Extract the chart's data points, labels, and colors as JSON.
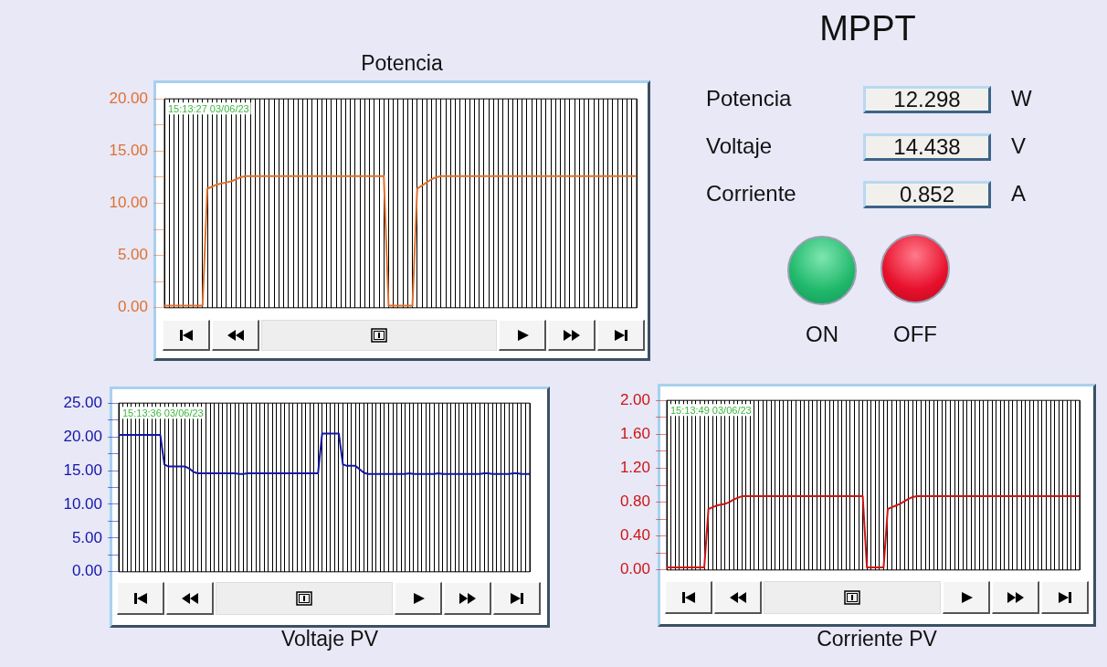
{
  "chart_data": [
    {
      "type": "line",
      "title": "Potencia",
      "annotations": [
        "15:13:27 03/06/23"
      ],
      "tick_labels": "y",
      "grid": "x",
      "ylim": [
        0,
        20
      ],
      "yticks": [
        {
          "value": 0,
          "label": "0.00"
        },
        {
          "value": 2.5,
          "label": null
        },
        {
          "value": 5,
          "label": "5.00"
        },
        {
          "value": 7.5,
          "label": null
        },
        {
          "value": 10,
          "label": "10.00"
        },
        {
          "value": 12.5,
          "label": null
        },
        {
          "value": 15,
          "label": "15.00"
        },
        {
          "value": 17.5,
          "label": null
        },
        {
          "value": 20,
          "label": "20.00"
        }
      ],
      "categories": [
        null,
        null,
        null,
        null,
        null,
        null,
        null,
        null,
        null,
        null,
        null,
        null,
        null,
        null,
        null,
        null,
        null,
        null,
        null,
        null,
        null,
        null,
        null,
        null,
        null,
        null,
        null,
        null,
        null,
        null,
        null,
        null,
        null,
        null,
        null,
        null,
        null,
        null,
        null,
        null,
        null,
        null,
        null,
        null,
        null,
        null,
        null,
        null,
        null,
        null,
        null,
        null,
        null,
        null,
        null,
        null,
        null,
        null,
        null,
        null,
        null,
        null,
        null,
        null,
        null,
        null,
        null,
        null,
        null,
        null,
        null,
        null,
        null,
        null,
        null,
        null,
        null,
        null,
        null,
        null,
        null,
        null,
        null,
        null,
        null,
        null,
        null,
        null,
        null,
        null,
        null,
        null,
        null,
        null,
        null,
        null,
        null,
        null,
        null,
        null
      ],
      "series": [
        {
          "color": "#e0702c",
          "values": [
            0.2,
            0.2,
            0.2,
            0.2,
            0.2,
            0.2,
            0.2,
            0.2,
            0.2,
            11.4,
            11.6,
            11.8,
            11.9,
            12.0,
            12.1,
            12.3,
            12.5,
            12.6,
            12.6,
            12.6,
            12.6,
            12.6,
            12.6,
            12.6,
            12.6,
            12.6,
            12.6,
            12.6,
            12.6,
            12.6,
            12.6,
            12.6,
            12.6,
            12.6,
            12.6,
            12.6,
            12.6,
            12.6,
            12.6,
            12.6,
            12.6,
            12.6,
            12.6,
            12.6,
            12.6,
            12.6,
            12.6,
            0.2,
            0.2,
            0.2,
            0.2,
            0.2,
            0.2,
            11.4,
            11.7,
            12.0,
            12.3,
            12.5,
            12.6,
            12.6,
            12.6,
            12.6,
            12.6,
            12.6,
            12.6,
            12.6,
            12.6,
            12.6,
            12.6,
            12.6,
            12.6,
            12.6,
            12.6,
            12.6,
            12.6,
            12.6,
            12.6,
            12.6,
            12.6,
            12.6,
            12.6,
            12.6,
            12.6,
            12.6,
            12.6,
            12.6,
            12.6,
            12.6,
            12.6,
            12.6,
            12.6,
            12.6,
            12.6,
            12.6,
            12.6,
            12.6,
            12.6,
            12.6,
            12.6,
            12.6
          ]
        }
      ]
    },
    {
      "type": "other",
      "title": "MPPT",
      "annotations": [
        "Potencia",
        "12.298",
        "W",
        "Voltaje",
        "14.438",
        "V",
        "Corriente",
        "0.852",
        "A",
        "ON",
        "OFF"
      ]
    },
    {
      "type": "line",
      "title": "Voltaje PV",
      "annotations": [
        "15:13:36 03/06/23"
      ],
      "tick_labels": "y",
      "grid": "x",
      "ylim": [
        0,
        25
      ],
      "yticks": [
        {
          "value": 0,
          "label": "0.00"
        },
        {
          "value": 2.5,
          "label": null
        },
        {
          "value": 5,
          "label": "5.00"
        },
        {
          "value": 7.5,
          "label": null
        },
        {
          "value": 10,
          "label": "10.00"
        },
        {
          "value": 12.5,
          "label": null
        },
        {
          "value": 15,
          "label": "15.00"
        },
        {
          "value": 17.5,
          "label": null
        },
        {
          "value": 20,
          "label": "20.00"
        },
        {
          "value": 22.5,
          "label": null
        },
        {
          "value": 25,
          "label": "25.00"
        }
      ],
      "categories": [
        null,
        null,
        null,
        null,
        null,
        null,
        null,
        null,
        null,
        null,
        null,
        null,
        null,
        null,
        null,
        null,
        null,
        null,
        null,
        null,
        null,
        null,
        null,
        null,
        null,
        null,
        null,
        null,
        null,
        null,
        null,
        null,
        null,
        null,
        null,
        null,
        null,
        null,
        null,
        null,
        null,
        null,
        null,
        null,
        null,
        null,
        null,
        null,
        null,
        null,
        null,
        null,
        null,
        null,
        null,
        null,
        null,
        null,
        null,
        null,
        null,
        null,
        null,
        null,
        null,
        null,
        null,
        null,
        null,
        null,
        null,
        null,
        null,
        null,
        null,
        null,
        null,
        null,
        null,
        null,
        null,
        null,
        null,
        null,
        null,
        null,
        null,
        null,
        null,
        null,
        null,
        null,
        null,
        null,
        null,
        null,
        null,
        null,
        null,
        null
      ],
      "series": [
        {
          "color": "#1414a8",
          "values": [
            20.3,
            20.3,
            20.3,
            20.3,
            20.3,
            20.3,
            20.3,
            20.3,
            20.3,
            20.3,
            20.3,
            15.9,
            15.6,
            15.6,
            15.6,
            15.6,
            15.6,
            15.3,
            14.8,
            14.6,
            14.6,
            14.6,
            14.6,
            14.6,
            14.6,
            14.6,
            14.6,
            14.6,
            14.6,
            14.5,
            14.5,
            14.6,
            14.6,
            14.6,
            14.6,
            14.6,
            14.6,
            14.6,
            14.6,
            14.6,
            14.6,
            14.6,
            14.6,
            14.6,
            14.6,
            14.6,
            14.6,
            14.6,
            14.6,
            20.5,
            20.5,
            20.5,
            20.5,
            20.5,
            15.9,
            15.7,
            15.7,
            15.7,
            15.2,
            14.7,
            14.5,
            14.5,
            14.5,
            14.5,
            14.5,
            14.5,
            14.5,
            14.5,
            14.5,
            14.5,
            14.6,
            14.5,
            14.5,
            14.5,
            14.5,
            14.5,
            14.5,
            14.6,
            14.5,
            14.5,
            14.5,
            14.5,
            14.5,
            14.5,
            14.5,
            14.5,
            14.5,
            14.5,
            14.6,
            14.6,
            14.5,
            14.5,
            14.5,
            14.5,
            14.5,
            14.6,
            14.6,
            14.5,
            14.5,
            14.5
          ]
        }
      ]
    },
    {
      "type": "line",
      "title": "Corriente PV",
      "annotations": [
        "15:13:49 03/06/23"
      ],
      "tick_labels": "y",
      "grid": "x",
      "ylim": [
        0,
        2
      ],
      "yticks": [
        {
          "value": 0,
          "label": "0.00"
        },
        {
          "value": 0.2,
          "label": null
        },
        {
          "value": 0.4,
          "label": "0.40"
        },
        {
          "value": 0.6,
          "label": null
        },
        {
          "value": 0.8,
          "label": "0.80"
        },
        {
          "value": 1,
          "label": null
        },
        {
          "value": 1.2,
          "label": "1.20"
        },
        {
          "value": 1.4,
          "label": null
        },
        {
          "value": 1.6,
          "label": "1.60"
        },
        {
          "value": 1.8,
          "label": null
        },
        {
          "value": 2,
          "label": "2.00"
        }
      ],
      "categories": [
        null,
        null,
        null,
        null,
        null,
        null,
        null,
        null,
        null,
        null,
        null,
        null,
        null,
        null,
        null,
        null,
        null,
        null,
        null,
        null,
        null,
        null,
        null,
        null,
        null,
        null,
        null,
        null,
        null,
        null,
        null,
        null,
        null,
        null,
        null,
        null,
        null,
        null,
        null,
        null,
        null,
        null,
        null,
        null,
        null,
        null,
        null,
        null,
        null,
        null,
        null,
        null,
        null,
        null,
        null,
        null,
        null,
        null,
        null,
        null,
        null,
        null,
        null,
        null,
        null,
        null,
        null,
        null,
        null,
        null,
        null,
        null,
        null,
        null,
        null,
        null,
        null,
        null,
        null,
        null,
        null,
        null,
        null,
        null,
        null,
        null,
        null,
        null,
        null,
        null,
        null,
        null,
        null,
        null,
        null,
        null,
        null,
        null,
        null,
        null
      ],
      "series": [
        {
          "color": "#cc1414",
          "values": [
            0.03,
            0.03,
            0.03,
            0.03,
            0.03,
            0.03,
            0.03,
            0.03,
            0.03,
            0.03,
            0.72,
            0.74,
            0.76,
            0.77,
            0.78,
            0.8,
            0.83,
            0.85,
            0.87,
            0.87,
            0.87,
            0.87,
            0.87,
            0.87,
            0.87,
            0.87,
            0.87,
            0.87,
            0.87,
            0.87,
            0.87,
            0.87,
            0.87,
            0.87,
            0.87,
            0.87,
            0.87,
            0.87,
            0.87,
            0.87,
            0.87,
            0.87,
            0.87,
            0.87,
            0.87,
            0.87,
            0.87,
            0.87,
            0.03,
            0.03,
            0.03,
            0.03,
            0.03,
            0.72,
            0.74,
            0.76,
            0.78,
            0.81,
            0.84,
            0.86,
            0.87,
            0.87,
            0.87,
            0.87,
            0.87,
            0.87,
            0.87,
            0.87,
            0.87,
            0.87,
            0.87,
            0.87,
            0.87,
            0.87,
            0.87,
            0.87,
            0.87,
            0.87,
            0.87,
            0.87,
            0.87,
            0.87,
            0.87,
            0.87,
            0.87,
            0.87,
            0.87,
            0.87,
            0.87,
            0.87,
            0.87,
            0.87,
            0.87,
            0.87,
            0.87,
            0.87,
            0.87,
            0.87,
            0.87,
            0.87
          ]
        }
      ]
    }
  ]
}
